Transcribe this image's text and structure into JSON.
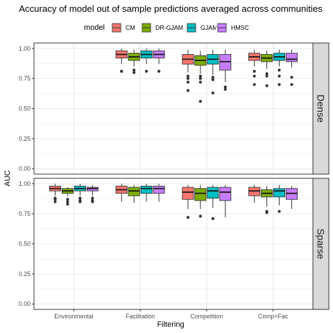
{
  "chart_data": {
    "type": "boxplot",
    "title": "Accuracy of model out of sample  predictions averaged across communities",
    "xlabel": "Filtering",
    "ylabel": "AUC",
    "legend": {
      "title": "model",
      "position": "top",
      "entries": [
        "CM",
        "DR-GJAM",
        "GJAM",
        "HMSC"
      ]
    },
    "colors": {
      "CM": "#f8766d",
      "DR-GJAM": "#7cae00",
      "GJAM": "#00bfc4",
      "HMSC": "#c77cff",
      "panel_strip": "#d9d9d9",
      "grid": "#ebebeb"
    },
    "categories": [
      "Environmental",
      "Facilitation",
      "Competition",
      "Comp+Fac"
    ],
    "ylim": [
      0,
      1
    ],
    "yticks": [
      "0.00",
      "0.25",
      "0.50",
      "0.75",
      "1.00"
    ],
    "grid": true,
    "panels": [
      {
        "label": "Dense",
        "groups": [
          {
            "category": "Facilitation",
            "boxes": [
              {
                "model": "CM",
                "min": 0.87,
                "q1": 0.92,
                "median": 0.95,
                "q3": 0.98,
                "max": 1.0,
                "outliers": [
                  0.81,
                  0.81
                ]
              },
              {
                "model": "DR-GJAM",
                "min": 0.85,
                "q1": 0.9,
                "median": 0.93,
                "q3": 0.96,
                "max": 0.99,
                "outliers": [
                  0.82,
                  0.8
                ]
              },
              {
                "model": "GJAM",
                "min": 0.87,
                "q1": 0.92,
                "median": 0.95,
                "q3": 0.98,
                "max": 1.0,
                "outliers": [
                  0.81
                ]
              },
              {
                "model": "HMSC",
                "min": 0.87,
                "q1": 0.92,
                "median": 0.95,
                "q3": 0.98,
                "max": 1.0,
                "outliers": [
                  0.81
                ]
              }
            ]
          },
          {
            "category": "Competition",
            "boxes": [
              {
                "model": "CM",
                "min": 0.8,
                "q1": 0.87,
                "median": 0.91,
                "q3": 0.95,
                "max": 0.99,
                "outliers": [
                  0.77,
                  0.75,
                  0.72,
                  0.65
                ]
              },
              {
                "model": "DR-GJAM",
                "min": 0.79,
                "q1": 0.86,
                "median": 0.9,
                "q3": 0.94,
                "max": 0.98,
                "outliers": [
                  0.77,
                  0.75,
                  0.72,
                  0.56
                ]
              },
              {
                "model": "GJAM",
                "min": 0.78,
                "q1": 0.87,
                "median": 0.91,
                "q3": 0.95,
                "max": 0.99,
                "outliers": [
                  0.76,
                  0.74,
                  0.63
                ]
              },
              {
                "model": "HMSC",
                "min": 0.72,
                "q1": 0.82,
                "median": 0.89,
                "q3": 0.95,
                "max": 0.99,
                "outliers": [
                  0.68,
                  0.66
                ]
              }
            ]
          },
          {
            "category": "Comp+Fac",
            "boxes": [
              {
                "model": "CM",
                "min": 0.85,
                "q1": 0.9,
                "median": 0.93,
                "q3": 0.96,
                "max": 0.99,
                "outliers": [
                  0.81,
                  0.77,
                  0.7
                ]
              },
              {
                "model": "DR-GJAM",
                "min": 0.83,
                "q1": 0.89,
                "median": 0.92,
                "q3": 0.95,
                "max": 0.98,
                "outliers": [
                  0.79,
                  0.77,
                  0.69
                ]
              },
              {
                "model": "GJAM",
                "min": 0.85,
                "q1": 0.9,
                "median": 0.93,
                "q3": 0.96,
                "max": 0.99,
                "outliers": [
                  0.82,
                  0.77,
                  0.7
                ]
              },
              {
                "model": "HMSC",
                "min": 0.84,
                "q1": 0.89,
                "median": 0.91,
                "q3": 0.96,
                "max": 0.99,
                "outliers": [
                  0.76,
                  0.7
                ]
              }
            ]
          }
        ]
      },
      {
        "label": "Sparse",
        "groups": [
          {
            "category": "Environmental",
            "boxes": [
              {
                "model": "CM",
                "min": 0.9,
                "q1": 0.94,
                "median": 0.96,
                "q3": 0.98,
                "max": 1.0,
                "outliers": [
                  0.88,
                  0.87,
                  0.85
                ]
              },
              {
                "model": "DR-GJAM",
                "min": 0.9,
                "q1": 0.92,
                "median": 0.94,
                "q3": 0.96,
                "max": 0.97,
                "outliers": [
                  0.87,
                  0.85,
                  0.83
                ]
              },
              {
                "model": "GJAM",
                "min": 0.9,
                "q1": 0.94,
                "median": 0.96,
                "q3": 0.98,
                "max": 1.0,
                "outliers": [
                  0.88,
                  0.86,
                  0.85
                ]
              },
              {
                "model": "HMSC",
                "min": 0.9,
                "q1": 0.94,
                "median": 0.96,
                "q3": 0.97,
                "max": 0.99,
                "outliers": [
                  0.88,
                  0.86,
                  0.85
                ]
              }
            ]
          },
          {
            "category": "Facilitation",
            "boxes": [
              {
                "model": "CM",
                "min": 0.85,
                "q1": 0.92,
                "median": 0.95,
                "q3": 0.98,
                "max": 1.0,
                "outliers": []
              },
              {
                "model": "DR-GJAM",
                "min": 0.84,
                "q1": 0.9,
                "median": 0.94,
                "q3": 0.97,
                "max": 0.99,
                "outliers": []
              },
              {
                "model": "GJAM",
                "min": 0.85,
                "q1": 0.92,
                "median": 0.96,
                "q3": 0.98,
                "max": 1.0,
                "outliers": []
              },
              {
                "model": "HMSC",
                "min": 0.85,
                "q1": 0.92,
                "median": 0.96,
                "q3": 0.98,
                "max": 1.0,
                "outliers": []
              }
            ]
          },
          {
            "category": "Competition",
            "boxes": [
              {
                "model": "CM",
                "min": 0.79,
                "q1": 0.87,
                "median": 0.93,
                "q3": 0.97,
                "max": 0.99,
                "outliers": [
                  0.72
                ]
              },
              {
                "model": "DR-GJAM",
                "min": 0.79,
                "q1": 0.86,
                "median": 0.92,
                "q3": 0.96,
                "max": 0.99,
                "outliers": [
                  0.73
                ]
              },
              {
                "model": "GJAM",
                "min": 0.8,
                "q1": 0.88,
                "median": 0.94,
                "q3": 0.97,
                "max": 0.99,
                "outliers": [
                  0.71
                ]
              },
              {
                "model": "HMSC",
                "min": 0.72,
                "q1": 0.86,
                "median": 0.93,
                "q3": 0.97,
                "max": 0.99,
                "outliers": []
              }
            ]
          },
          {
            "category": "Comp+Fac",
            "boxes": [
              {
                "model": "CM",
                "min": 0.84,
                "q1": 0.9,
                "median": 0.94,
                "q3": 0.97,
                "max": 0.99,
                "outliers": []
              },
              {
                "model": "DR-GJAM",
                "min": 0.81,
                "q1": 0.89,
                "median": 0.92,
                "q3": 0.95,
                "max": 0.98,
                "outliers": [
                  0.77,
                  0.76
                ]
              },
              {
                "model": "GJAM",
                "min": 0.82,
                "q1": 0.89,
                "median": 0.94,
                "q3": 0.96,
                "max": 0.99,
                "outliers": [
                  0.77
                ]
              },
              {
                "model": "HMSC",
                "min": 0.79,
                "q1": 0.87,
                "median": 0.92,
                "q3": 0.96,
                "max": 0.98,
                "outliers": []
              }
            ]
          }
        ]
      }
    ]
  }
}
